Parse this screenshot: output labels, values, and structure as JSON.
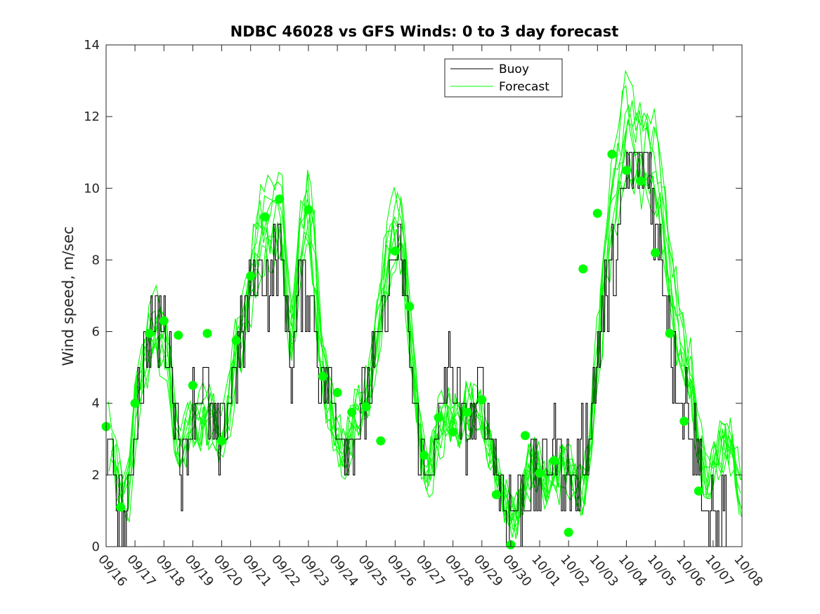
{
  "chart_data": {
    "type": "line",
    "title": "NDBC 46028 vs GFS Winds: 0 to 3 day forecast",
    "ylabel": "Wind speed, m/sec",
    "xlabel": "",
    "ylim": [
      0,
      14
    ],
    "yticks": [
      0,
      2,
      4,
      6,
      8,
      10,
      12,
      14
    ],
    "xticks": [
      "09/16",
      "09/17",
      "09/18",
      "09/19",
      "09/20",
      "09/21",
      "09/22",
      "09/23",
      "09/24",
      "09/25",
      "09/26",
      "09/27",
      "09/28",
      "09/29",
      "09/30",
      "10/01",
      "10/02",
      "10/03",
      "10/04",
      "10/05",
      "10/06",
      "10/07",
      "10/08"
    ],
    "x_units": "days since 09/16 00:00",
    "grid": false,
    "legend": {
      "position": "top-right",
      "entries": [
        "Buoy",
        "Forecast"
      ]
    },
    "colors": {
      "buoy": "#000000",
      "forecast": "#00ff00",
      "markers": "#00ff00"
    },
    "buoy_control": [
      [
        0.0,
        2.6
      ],
      [
        0.2,
        2.2
      ],
      [
        0.35,
        1.6
      ],
      [
        0.5,
        0.9
      ],
      [
        0.65,
        0.5
      ],
      [
        0.8,
        1.4
      ],
      [
        1.0,
        3.6
      ],
      [
        1.15,
        4.7
      ],
      [
        1.3,
        5.2
      ],
      [
        1.5,
        5.6
      ],
      [
        1.65,
        6.4
      ],
      [
        1.8,
        6.0
      ],
      [
        1.95,
        6.2
      ],
      [
        2.1,
        5.6
      ],
      [
        2.25,
        5.2
      ],
      [
        2.4,
        3.8
      ],
      [
        2.55,
        2.6
      ],
      [
        2.7,
        2.4
      ],
      [
        2.85,
        3.6
      ],
      [
        3.0,
        4.2
      ],
      [
        3.15,
        4.4
      ],
      [
        3.3,
        4.6
      ],
      [
        3.45,
        4.2
      ],
      [
        3.6,
        3.6
      ],
      [
        3.75,
        3.2
      ],
      [
        3.9,
        2.8
      ],
      [
        4.0,
        3.0
      ],
      [
        4.15,
        3.8
      ],
      [
        4.3,
        4.6
      ],
      [
        4.5,
        5.2
      ],
      [
        4.7,
        5.8
      ],
      [
        4.85,
        6.6
      ],
      [
        5.0,
        7.2
      ],
      [
        5.2,
        7.6
      ],
      [
        5.4,
        7.6
      ],
      [
        5.6,
        7.2
      ],
      [
        5.8,
        7.8
      ],
      [
        6.0,
        8.2
      ],
      [
        6.15,
        7.2
      ],
      [
        6.3,
        5.6
      ],
      [
        6.45,
        5.2
      ],
      [
        6.6,
        6.6
      ],
      [
        6.8,
        7.4
      ],
      [
        7.0,
        7.2
      ],
      [
        7.2,
        6.4
      ],
      [
        7.35,
        5.2
      ],
      [
        7.5,
        4.6
      ],
      [
        7.65,
        4.3
      ],
      [
        7.8,
        3.8
      ],
      [
        8.0,
        3.6
      ],
      [
        8.2,
        3.2
      ],
      [
        8.4,
        2.8
      ],
      [
        8.6,
        3.0
      ],
      [
        8.8,
        3.6
      ],
      [
        9.0,
        4.0
      ],
      [
        9.2,
        4.8
      ],
      [
        9.4,
        5.6
      ],
      [
        9.6,
        6.6
      ],
      [
        9.8,
        7.6
      ],
      [
        10.0,
        8.2
      ],
      [
        10.2,
        7.8
      ],
      [
        10.4,
        6.6
      ],
      [
        10.55,
        4.8
      ],
      [
        10.7,
        3.2
      ],
      [
        10.9,
        2.6
      ],
      [
        11.1,
        2.2
      ],
      [
        11.3,
        2.4
      ],
      [
        11.5,
        3.0
      ],
      [
        11.7,
        4.4
      ],
      [
        11.9,
        4.8
      ],
      [
        12.1,
        4.2
      ],
      [
        12.3,
        3.6
      ],
      [
        12.5,
        3.4
      ],
      [
        12.7,
        3.6
      ],
      [
        12.9,
        4.0
      ],
      [
        13.1,
        3.8
      ],
      [
        13.3,
        3.2
      ],
      [
        13.5,
        2.4
      ],
      [
        13.7,
        1.6
      ],
      [
        13.9,
        1.2
      ],
      [
        14.1,
        1.0
      ],
      [
        14.3,
        1.2
      ],
      [
        14.5,
        1.6
      ],
      [
        14.7,
        2.0
      ],
      [
        14.9,
        2.0
      ],
      [
        15.1,
        2.2
      ],
      [
        15.3,
        2.4
      ],
      [
        15.5,
        2.6
      ],
      [
        15.7,
        2.6
      ],
      [
        15.9,
        2.2
      ],
      [
        16.1,
        1.8
      ],
      [
        16.3,
        2.2
      ],
      [
        16.5,
        2.6
      ],
      [
        16.7,
        3.2
      ],
      [
        16.9,
        4.6
      ],
      [
        17.1,
        6.2
      ],
      [
        17.3,
        7.0
      ],
      [
        17.5,
        8.0
      ],
      [
        17.7,
        8.6
      ],
      [
        17.9,
        9.6
      ],
      [
        18.1,
        10.6
      ],
      [
        18.3,
        10.4
      ],
      [
        18.5,
        10.6
      ],
      [
        18.7,
        10.8
      ],
      [
        18.9,
        9.8
      ],
      [
        19.1,
        8.6
      ],
      [
        19.3,
        7.6
      ],
      [
        19.5,
        6.2
      ],
      [
        19.7,
        4.6
      ],
      [
        19.9,
        4.2
      ],
      [
        20.1,
        3.8
      ],
      [
        20.3,
        3.0
      ],
      [
        20.5,
        2.4
      ],
      [
        20.7,
        1.0
      ],
      [
        20.9,
        0.5
      ],
      [
        21.1,
        0.6
      ],
      [
        21.3,
        0.8
      ],
      [
        21.5,
        1.0
      ]
    ],
    "forecast_control": [
      [
        0.0,
        3.4
      ],
      [
        0.25,
        2.4
      ],
      [
        0.5,
        1.6
      ],
      [
        0.75,
        1.4
      ],
      [
        1.0,
        3.8
      ],
      [
        1.25,
        5.0
      ],
      [
        1.5,
        5.8
      ],
      [
        1.75,
        6.2
      ],
      [
        2.0,
        5.6
      ],
      [
        2.2,
        4.8
      ],
      [
        2.4,
        3.2
      ],
      [
        2.6,
        2.6
      ],
      [
        2.8,
        3.2
      ],
      [
        3.0,
        3.6
      ],
      [
        3.2,
        3.4
      ],
      [
        3.4,
        3.8
      ],
      [
        3.6,
        3.6
      ],
      [
        3.8,
        3.2
      ],
      [
        4.0,
        2.9
      ],
      [
        4.25,
        4.0
      ],
      [
        4.5,
        5.6
      ],
      [
        4.75,
        6.2
      ],
      [
        5.0,
        7.4
      ],
      [
        5.25,
        8.6
      ],
      [
        5.5,
        8.8
      ],
      [
        5.75,
        9.0
      ],
      [
        6.0,
        9.4
      ],
      [
        6.15,
        8.4
      ],
      [
        6.3,
        6.4
      ],
      [
        6.45,
        5.6
      ],
      [
        6.6,
        7.6
      ],
      [
        6.8,
        8.8
      ],
      [
        7.0,
        9.2
      ],
      [
        7.2,
        8.2
      ],
      [
        7.4,
        5.6
      ],
      [
        7.6,
        4.4
      ],
      [
        7.8,
        3.6
      ],
      [
        8.0,
        3.0
      ],
      [
        8.2,
        2.6
      ],
      [
        8.4,
        3.0
      ],
      [
        8.6,
        3.6
      ],
      [
        8.8,
        3.6
      ],
      [
        9.0,
        4.0
      ],
      [
        9.25,
        5.2
      ],
      [
        9.5,
        6.8
      ],
      [
        9.75,
        8.2
      ],
      [
        10.0,
        9.0
      ],
      [
        10.25,
        8.6
      ],
      [
        10.5,
        6.4
      ],
      [
        10.75,
        3.8
      ],
      [
        11.0,
        2.2
      ],
      [
        11.25,
        2.2
      ],
      [
        11.5,
        3.2
      ],
      [
        11.75,
        3.8
      ],
      [
        12.0,
        3.4
      ],
      [
        12.25,
        3.6
      ],
      [
        12.5,
        3.8
      ],
      [
        12.75,
        4.0
      ],
      [
        13.0,
        3.6
      ],
      [
        13.25,
        2.8
      ],
      [
        13.5,
        2.0
      ],
      [
        13.75,
        1.2
      ],
      [
        14.0,
        0.8
      ],
      [
        14.25,
        1.0
      ],
      [
        14.5,
        1.8
      ],
      [
        14.75,
        2.4
      ],
      [
        15.0,
        2.0
      ],
      [
        15.25,
        1.6
      ],
      [
        15.5,
        1.8
      ],
      [
        15.75,
        2.2
      ],
      [
        16.0,
        2.2
      ],
      [
        16.25,
        1.6
      ],
      [
        16.5,
        1.6
      ],
      [
        16.75,
        2.8
      ],
      [
        17.0,
        5.2
      ],
      [
        17.25,
        7.8
      ],
      [
        17.5,
        9.6
      ],
      [
        17.75,
        10.6
      ],
      [
        18.0,
        11.8
      ],
      [
        18.25,
        11.4
      ],
      [
        18.5,
        10.8
      ],
      [
        18.75,
        10.8
      ],
      [
        19.0,
        10.6
      ],
      [
        19.25,
        9.4
      ],
      [
        19.5,
        7.6
      ],
      [
        19.75,
        6.2
      ],
      [
        20.0,
        5.4
      ],
      [
        20.25,
        4.6
      ],
      [
        20.5,
        2.8
      ],
      [
        20.75,
        1.8
      ],
      [
        21.0,
        2.2
      ],
      [
        21.25,
        2.8
      ],
      [
        21.5,
        3.0
      ],
      [
        21.75,
        2.4
      ],
      [
        22.0,
        1.2
      ]
    ],
    "forecast_markers": [
      [
        0.0,
        3.35
      ],
      [
        0.5,
        1.1
      ],
      [
        1.0,
        4.0
      ],
      [
        1.5,
        5.95
      ],
      [
        2.0,
        6.3
      ],
      [
        2.5,
        5.9
      ],
      [
        3.0,
        4.5
      ],
      [
        3.5,
        5.95
      ],
      [
        4.0,
        2.95
      ],
      [
        4.5,
        5.75
      ],
      [
        5.0,
        7.55
      ],
      [
        5.5,
        9.2
      ],
      [
        6.0,
        9.7
      ],
      [
        7.0,
        9.4
      ],
      [
        7.5,
        4.75
      ],
      [
        8.0,
        4.3
      ],
      [
        8.5,
        3.75
      ],
      [
        9.0,
        3.9
      ],
      [
        9.5,
        2.95
      ],
      [
        10.0,
        8.25
      ],
      [
        10.5,
        6.7
      ],
      [
        11.0,
        2.55
      ],
      [
        11.5,
        3.6
      ],
      [
        12.0,
        3.2
      ],
      [
        12.5,
        3.75
      ],
      [
        13.0,
        4.1
      ],
      [
        13.5,
        1.45
      ],
      [
        14.0,
        0.05
      ],
      [
        14.5,
        3.1
      ],
      [
        15.0,
        2.05
      ],
      [
        15.5,
        2.4
      ],
      [
        16.0,
        0.4
      ],
      [
        16.5,
        7.75
      ],
      [
        17.0,
        9.3
      ],
      [
        17.5,
        10.95
      ],
      [
        18.0,
        10.5
      ],
      [
        18.5,
        10.2
      ],
      [
        19.0,
        8.2
      ],
      [
        19.5,
        5.95
      ],
      [
        20.0,
        3.5
      ],
      [
        20.5,
        1.55
      ]
    ]
  }
}
